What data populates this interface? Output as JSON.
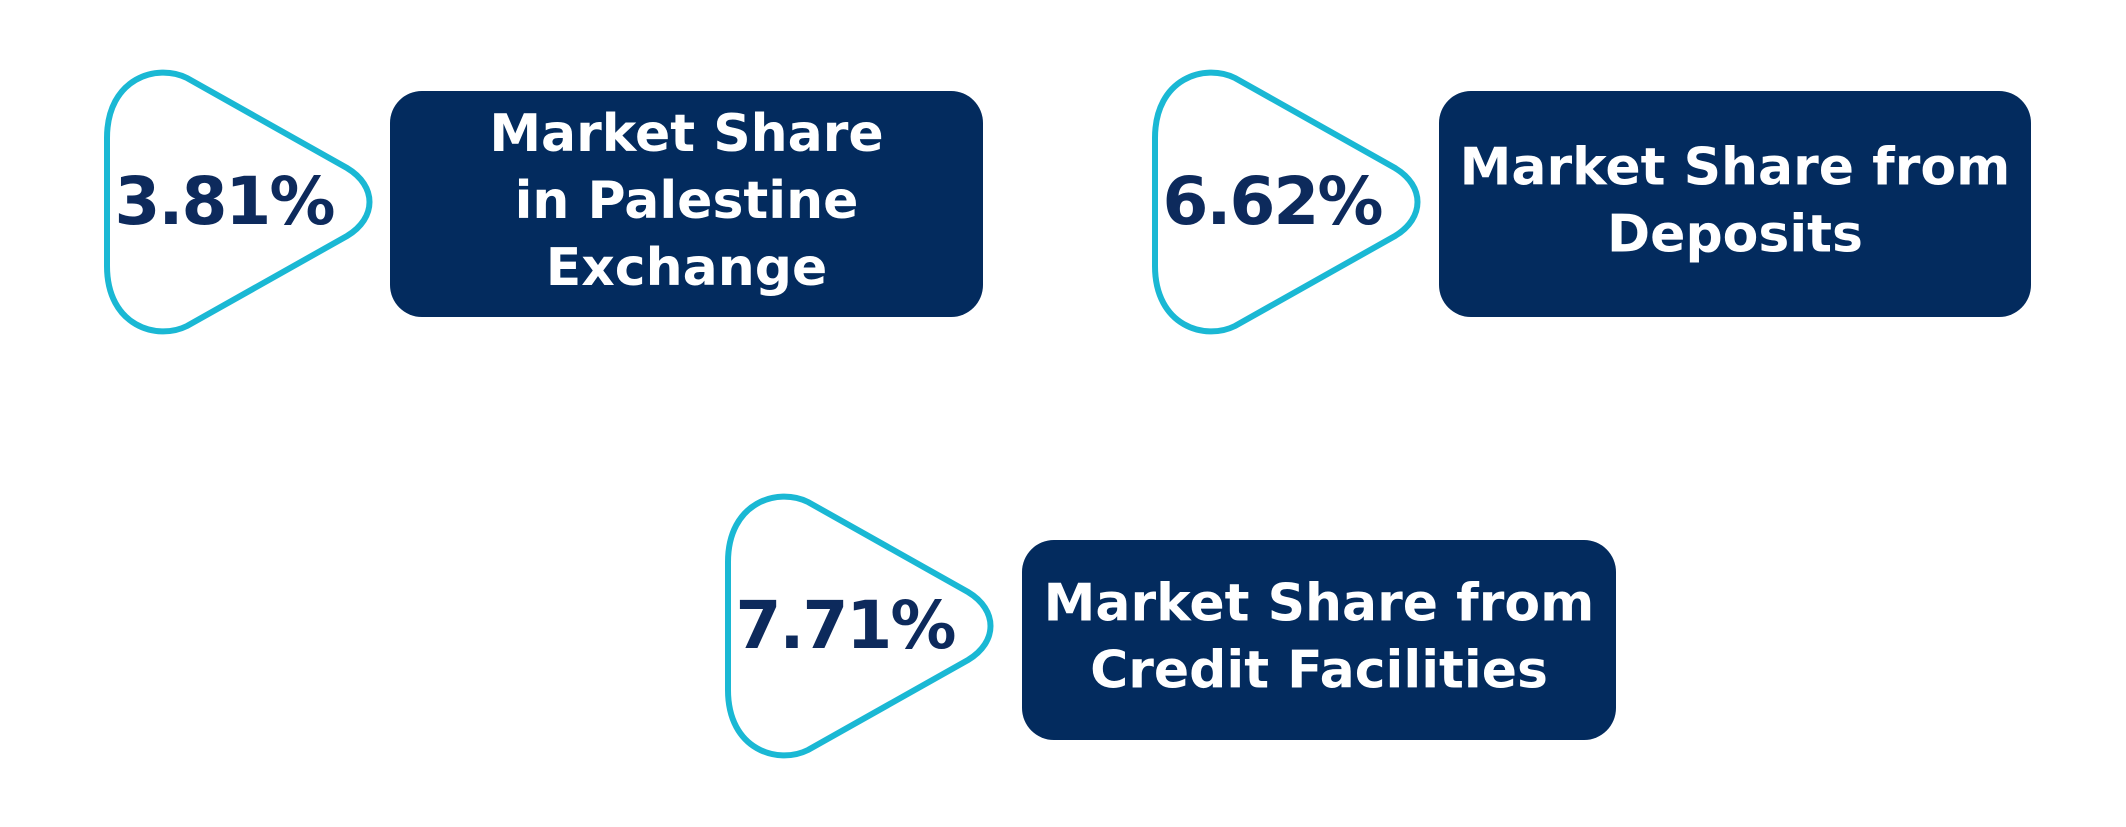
{
  "items": [
    {
      "value": "3.81%",
      "label_lines": [
        "Market Share",
        "in Palestine",
        "Exchange"
      ]
    },
    {
      "value": "6.62%",
      "label_lines": [
        "Market Share from",
        "Deposits"
      ]
    },
    {
      "value": "7.71%",
      "label_lines": [
        "Market Share from",
        "Credit Facilities"
      ]
    }
  ]
}
